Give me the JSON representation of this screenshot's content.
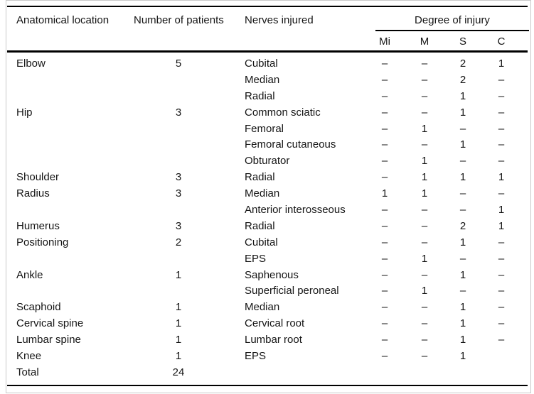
{
  "table": {
    "columns": {
      "location": "Anatomical location",
      "patients": "Number of patients",
      "nerves": "Nerves injured",
      "degree": "Degree of injury"
    },
    "degree_subcolumns": [
      "Mi",
      "M",
      "S",
      "C"
    ],
    "rows": [
      [
        "Elbow",
        "5",
        "Cubital",
        "–",
        "–",
        "2",
        "1"
      ],
      [
        "",
        "",
        "Median",
        "–",
        "–",
        "2",
        "–"
      ],
      [
        "",
        "",
        "Radial",
        "–",
        "–",
        "1",
        "–"
      ],
      [
        "Hip",
        "3",
        "Common sciatic",
        "–",
        "–",
        "1",
        "–"
      ],
      [
        "",
        "",
        "Femoral",
        "–",
        "1",
        "–",
        "–"
      ],
      [
        "",
        "",
        "Femoral cutaneous",
        "–",
        "–",
        "1",
        "–"
      ],
      [
        "",
        "",
        "Obturator",
        "–",
        "1",
        "–",
        "–"
      ],
      [
        "Shoulder",
        "3",
        "Radial",
        "–",
        "1",
        "1",
        "1"
      ],
      [
        "Radius",
        "3",
        "Median",
        "1",
        "1",
        "–",
        "–"
      ],
      [
        "",
        "",
        "Anterior interosseous",
        "–",
        "–",
        "–",
        "1"
      ],
      [
        "Humerus",
        "3",
        "Radial",
        "–",
        "–",
        "2",
        "1"
      ],
      [
        "Positioning",
        "2",
        "Cubital",
        "–",
        "–",
        "1",
        "–"
      ],
      [
        "",
        "",
        "EPS",
        "–",
        "1",
        "–",
        "–"
      ],
      [
        "Ankle",
        "1",
        "Saphenous",
        "–",
        "–",
        "1",
        "–"
      ],
      [
        "",
        "",
        "Superficial peroneal",
        "–",
        "1",
        "–",
        "–"
      ],
      [
        "Scaphoid",
        "1",
        "Median",
        "–",
        "–",
        "1",
        "–"
      ],
      [
        "Cervical spine",
        "1",
        "Cervical root",
        "–",
        "–",
        "1",
        "–"
      ],
      [
        "Lumbar spine",
        "1",
        "Lumbar root",
        "–",
        "–",
        "1",
        "–"
      ],
      [
        "Knee",
        "1",
        "EPS",
        "–",
        "–",
        "1",
        ""
      ],
      [
        "Total",
        "24",
        "",
        "",
        "",
        "",
        ""
      ]
    ],
    "colors": {
      "text": "#151515",
      "rule": "#000000",
      "figure_border": "#c9c9c9",
      "background": "#ffffff"
    }
  }
}
